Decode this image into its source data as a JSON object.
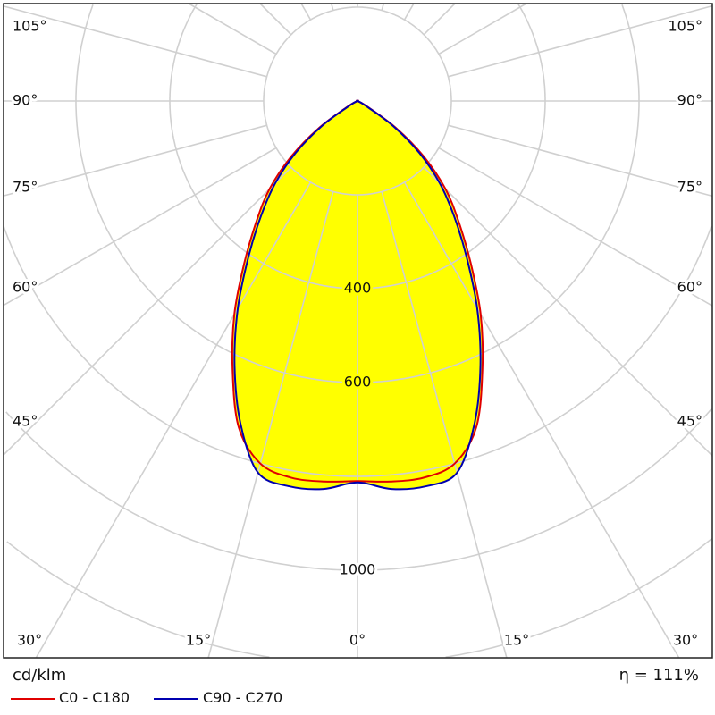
{
  "chart_data": {
    "type": "polar",
    "unit": "cd/klm",
    "efficiency_label": "η = 111%",
    "radial_range": [
      0,
      1400
    ],
    "radial_rings": [
      200,
      400,
      600,
      800,
      1000,
      1200,
      1400
    ],
    "radial_tick_labels": [
      "400",
      "600",
      "1000"
    ],
    "radial_tick_values": [
      400,
      600,
      1000
    ],
    "angle_step": 15,
    "angle_labels_left": [
      "105°",
      "90°",
      "75°",
      "60°",
      "45°"
    ],
    "angle_labels_right": [
      "105°",
      "90°",
      "75°",
      "60°",
      "45°"
    ],
    "angle_labels_bottom": [
      "30°",
      "15°",
      "0°",
      "15°",
      "30°"
    ],
    "angles": [
      0,
      5,
      10,
      15,
      20,
      25,
      30,
      35,
      40,
      45,
      50,
      55,
      60,
      65,
      70,
      75,
      80,
      85,
      90
    ],
    "series": [
      {
        "name": "C0 - C180",
        "color": "#e00000",
        "values": [
          810,
          814,
          815,
          800,
          740,
          630,
          525,
          420,
          335,
          265,
          185,
          100,
          25,
          0,
          0,
          0,
          0,
          0,
          0
        ]
      },
      {
        "name": "C90 - C270",
        "color": "#0000b0",
        "values": [
          813,
          830,
          834,
          820,
          730,
          620,
          510,
          405,
          320,
          248,
          172,
          92,
          18,
          0,
          0,
          0,
          0,
          0,
          0
        ]
      }
    ],
    "fill_color": "#ffff00",
    "grid": true,
    "legend_placement": "bottom-left"
  }
}
